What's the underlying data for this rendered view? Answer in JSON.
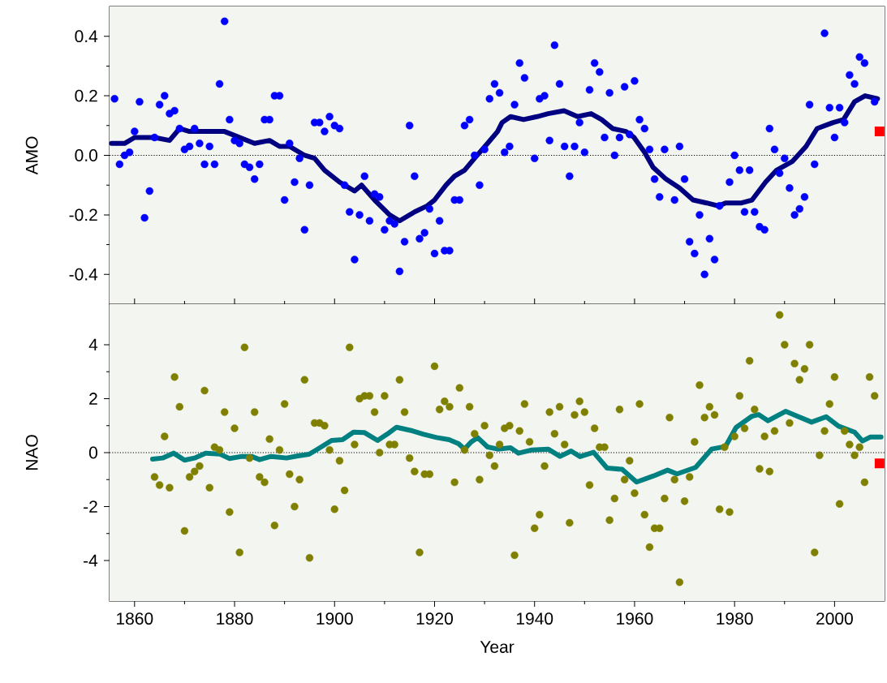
{
  "chart_data": [
    {
      "type": "scatter",
      "ylabel": "AMO",
      "xlim": [
        1855,
        2010
      ],
      "ylim": [
        -0.5,
        0.5
      ],
      "tick_labels": "y",
      "xticks": [
        1860,
        1880,
        1900,
        1920,
        1940,
        1960,
        1980,
        2000
      ],
      "yticks": [
        -0.4,
        -0.2,
        {
          "value": 0,
          "label": "0.0"
        },
        0.2,
        0.4
      ],
      "ref_lines": [
        {
          "axis": "y",
          "value": 0,
          "color": "#000000",
          "line_style": "dotted"
        }
      ],
      "series": [
        {
          "marker": "circle",
          "color": "#0000ff",
          "x": [
            1856,
            1857,
            1858,
            1859,
            1860,
            1861,
            1862,
            1863,
            1864,
            1865,
            1866,
            1867,
            1868,
            1869,
            1870,
            1871,
            1872,
            1873,
            1874,
            1875,
            1876,
            1877,
            1878,
            1879,
            1880,
            1881,
            1882,
            1883,
            1884,
            1885,
            1886,
            1887,
            1888,
            1889,
            1890,
            1891,
            1892,
            1893,
            1894,
            1895,
            1896,
            1897,
            1898,
            1899,
            1900,
            1901,
            1902,
            1903,
            1904,
            1905,
            1906,
            1907,
            1908,
            1909,
            1910,
            1911,
            1912,
            1913,
            1914,
            1915,
            1916,
            1917,
            1918,
            1919,
            1920,
            1921,
            1922,
            1923,
            1924,
            1925,
            1926,
            1927,
            1928,
            1929,
            1930,
            1931,
            1932,
            1933,
            1934,
            1935,
            1936,
            1937,
            1938,
            1939,
            1940,
            1941,
            1942,
            1943,
            1944,
            1945,
            1946,
            1947,
            1948,
            1949,
            1950,
            1951,
            1952,
            1953,
            1954,
            1955,
            1956,
            1957,
            1958,
            1959,
            1960,
            1961,
            1962,
            1963,
            1964,
            1965,
            1966,
            1967,
            1968,
            1969,
            1970,
            1971,
            1972,
            1973,
            1974,
            1975,
            1976,
            1977,
            1978,
            1979,
            1980,
            1981,
            1982,
            1983,
            1984,
            1985,
            1986,
            1987,
            1988,
            1989,
            1990,
            1991,
            1992,
            1993,
            1994,
            1995,
            1996,
            1997,
            1998,
            1999,
            2000,
            2001,
            2002,
            2003,
            2004,
            2005,
            2006,
            2007,
            2008
          ],
          "values": [
            0.19,
            -0.03,
            0.0,
            0.01,
            0.08,
            0.18,
            -0.21,
            -0.12,
            0.06,
            0.17,
            0.2,
            0.14,
            0.15,
            0.09,
            0.02,
            0.03,
            0.09,
            0.04,
            -0.03,
            0.03,
            -0.03,
            0.24,
            0.45,
            0.12,
            0.05,
            0.04,
            -0.03,
            -0.04,
            -0.08,
            -0.03,
            0.12,
            0.12,
            0.2,
            0.2,
            -0.15,
            0.04,
            -0.09,
            -0.01,
            -0.25,
            -0.1,
            0.11,
            0.11,
            0.08,
            0.13,
            0.1,
            0.09,
            -0.1,
            -0.19,
            -0.35,
            -0.2,
            -0.07,
            -0.22,
            -0.13,
            -0.14,
            -0.25,
            -0.22,
            -0.23,
            -0.39,
            -0.29,
            0.1,
            -0.07,
            -0.28,
            -0.26,
            -0.18,
            -0.33,
            -0.22,
            -0.32,
            -0.32,
            -0.15,
            -0.15,
            0.1,
            0.12,
            0.0,
            -0.1,
            0.02,
            0.19,
            0.24,
            0.21,
            0.01,
            0.03,
            0.17,
            0.31,
            0.26,
            null,
            -0.01,
            0.19,
            0.2,
            0.05,
            0.37,
            0.24,
            0.03,
            -0.07,
            0.03,
            0.11,
            0.01,
            0.22,
            0.31,
            0.28,
            0.06,
            0.21,
            0.0,
            0.06,
            0.23,
            0.07,
            0.25,
            0.12,
            0.09,
            0.02,
            -0.08,
            -0.14,
            0.02,
            null,
            -0.15,
            0.03,
            -0.08,
            -0.29,
            -0.33,
            -0.2,
            -0.4,
            -0.28,
            -0.35,
            -0.17,
            null,
            -0.09,
            0.0,
            -0.05,
            -0.19,
            -0.05,
            -0.19,
            -0.24,
            -0.25,
            0.09,
            0.02,
            -0.06,
            -0.01,
            -0.11,
            -0.2,
            -0.18,
            -0.14,
            0.17,
            -0.03,
            null,
            0.41,
            0.16,
            0.06,
            0.16,
            0.11,
            0.27,
            0.24,
            0.33,
            0.31,
            null,
            0.18
          ]
        },
        {
          "type": "line",
          "color": "#000080",
          "x": [
            1855.4,
            1858,
            1860,
            1864,
            1867,
            1869,
            1871,
            1874,
            1878,
            1881,
            1884,
            1887,
            1889,
            1891,
            1894,
            1896,
            1898,
            1901,
            1904,
            1905.4,
            1908,
            1911,
            1913,
            1916,
            1918.5,
            1920,
            1922.3,
            1924,
            1926,
            1928,
            1930.6,
            1932.6,
            1933.5,
            1935.2,
            1937.8,
            1940.5,
            1942.7,
            1945.9,
            1948.6,
            1951.3,
            1953.4,
            1955.6,
            1958.3,
            1959.9,
            1962,
            1963.7,
            1966.3,
            1969,
            1971.7,
            1974.4,
            1976.8,
            1978.2,
            1981.4,
            1983.5,
            1986.2,
            1988.4,
            1991.6,
            1994.3,
            1996.5,
            1999.7,
            2001.8,
            2004,
            2006.1,
            2008.6
          ],
          "values": [
            0.04,
            0.04,
            0.06,
            0.06,
            0.05,
            0.09,
            0.08,
            0.08,
            0.08,
            0.06,
            0.04,
            0.05,
            0.03,
            0.03,
            0.0,
            -0.01,
            -0.05,
            -0.09,
            -0.12,
            -0.1,
            -0.15,
            -0.2,
            -0.22,
            -0.19,
            -0.17,
            -0.15,
            -0.1,
            -0.07,
            -0.05,
            -0.01,
            0.04,
            0.08,
            0.11,
            0.13,
            0.12,
            0.13,
            0.14,
            0.15,
            0.13,
            0.14,
            0.12,
            0.09,
            0.08,
            0.06,
            0.01,
            -0.04,
            -0.08,
            -0.11,
            -0.15,
            -0.16,
            -0.17,
            -0.16,
            -0.16,
            -0.15,
            -0.09,
            -0.05,
            -0.02,
            0.03,
            0.09,
            0.11,
            0.12,
            0.18,
            0.2,
            0.19
          ]
        },
        {
          "marker": "square",
          "color": "#ff0000",
          "x": [
            2009
          ],
          "values": [
            0.08
          ]
        }
      ]
    },
    {
      "type": "scatter",
      "xlabel": "Year",
      "ylabel": "NAO",
      "xlim": [
        1855,
        2010
      ],
      "ylim": [
        -5.5,
        5.5
      ],
      "xticks": [
        1860,
        1880,
        1900,
        1920,
        1940,
        1960,
        1980,
        2000
      ],
      "yticks": [
        -4,
        -2,
        0,
        2,
        4
      ],
      "ref_lines": [
        {
          "axis": "y",
          "value": 0,
          "color": "#000000",
          "line_style": "dotted"
        }
      ],
      "series": [
        {
          "marker": "circle",
          "color": "#808000",
          "x": [
            1864,
            1865,
            1866,
            1867,
            1868,
            1869,
            1870,
            1871,
            1872,
            1873,
            1874,
            1875,
            1876,
            1877,
            1878,
            1879,
            1880,
            1881,
            1882,
            1883,
            1884,
            1885,
            1886,
            1887,
            1888,
            1889,
            1890,
            1891,
            1892,
            1893,
            1894,
            1895,
            1896,
            1897,
            1898,
            1899,
            1900,
            1901,
            1902,
            1903,
            1904,
            1905,
            1906,
            1907,
            1908,
            1909,
            1910,
            1911,
            1912,
            1913,
            1914,
            1915,
            1916,
            1917,
            1918,
            1919,
            1920,
            1921,
            1922,
            1923,
            1924,
            1925,
            1926,
            1927,
            1928,
            1929,
            1930,
            1931,
            1932,
            1933,
            1934,
            1935,
            1936,
            1937,
            1938,
            1939,
            1940,
            1941,
            1942,
            1943,
            1944,
            1945,
            1946,
            1947,
            1948,
            1949,
            1950,
            1951,
            1952,
            1953,
            1954,
            1955,
            1956,
            1957,
            1958,
            1959,
            1960,
            1961,
            1962,
            1963,
            1964,
            1965,
            1966,
            1967,
            1968,
            1969,
            1970,
            1971,
            1972,
            1973,
            1974,
            1975,
            1976,
            1977,
            1978,
            1979,
            1980,
            1981,
            1982,
            1983,
            1984,
            1985,
            1986,
            1987,
            1988,
            1989,
            1990,
            1991,
            1992,
            1993,
            1994,
            1995,
            1996,
            1997,
            1998,
            1999,
            2000,
            2001,
            2002,
            2003,
            2004,
            2005,
            2006,
            2007,
            2008
          ],
          "values": [
            -0.9,
            -1.2,
            0.6,
            -1.3,
            2.8,
            1.7,
            -2.9,
            -0.9,
            -0.7,
            -0.5,
            2.3,
            -1.3,
            0.2,
            0.1,
            1.5,
            -2.2,
            0.9,
            -3.7,
            3.9,
            -0.2,
            1.5,
            -0.9,
            -1.1,
            0.5,
            -2.7,
            0.1,
            1.8,
            -0.8,
            -2.0,
            -1.0,
            2.7,
            -3.9,
            1.1,
            1.1,
            1.0,
            0.1,
            -2.1,
            -0.3,
            -1.4,
            3.9,
            0.3,
            2.0,
            2.1,
            2.1,
            1.5,
            0.0,
            2.1,
            0.3,
            0.3,
            2.7,
            1.5,
            -0.2,
            -0.7,
            -3.7,
            -0.8,
            -0.8,
            3.2,
            1.6,
            1.9,
            1.7,
            -1.1,
            2.4,
            0.1,
            1.7,
            0.7,
            -1.0,
            1.0,
            -0.1,
            -0.5,
            0.3,
            0.9,
            1.0,
            -3.8,
            0.8,
            1.8,
            0.4,
            -2.8,
            -2.3,
            -0.5,
            1.5,
            0.7,
            1.7,
            0.3,
            -2.6,
            1.4,
            1.9,
            1.5,
            -1.2,
            0.9,
            0.2,
            0.2,
            -2.5,
            -1.7,
            1.6,
            -1.0,
            -0.3,
            -1.5,
            1.8,
            -2.3,
            -3.5,
            -2.8,
            -2.8,
            -1.7,
            1.3,
            -1.0,
            -4.8,
            -1.8,
            -0.9,
            0.4,
            2.5,
            1.3,
            1.7,
            1.4,
            -2.1,
            0.2,
            -2.2,
            0.6,
            2.1,
            0.9,
            3.4,
            1.6,
            -0.6,
            0.6,
            -0.7,
            0.8,
            5.1,
            4.0,
            1.1,
            3.3,
            2.7,
            3.1,
            4.0,
            -3.7,
            -0.1,
            0.8,
            1.8,
            2.8,
            -1.9,
            0.8,
            0.3,
            -0.1,
            0.2,
            -1.1,
            2.8,
            2.1
          ]
        },
        {
          "type": "line",
          "color": "#008080",
          "x": [
            1863.6,
            1865.6,
            1867.8,
            1870,
            1872,
            1874.2,
            1877,
            1879,
            1881.5,
            1883.4,
            1885,
            1887.3,
            1890.4,
            1892.7,
            1894.9,
            1896.8,
            1899.4,
            1901.6,
            1903.8,
            1906,
            1908.6,
            1910.5,
            1912.4,
            1915.3,
            1917.8,
            1920.4,
            1922.9,
            1924.8,
            1926,
            1927.3,
            1928.6,
            1930.6,
            1932.6,
            1935.2,
            1936.8,
            1939.5,
            1942.7,
            1945.1,
            1947.3,
            1949.1,
            1951.8,
            1954.5,
            1957.5,
            1960.4,
            1963.7,
            1966.6,
            1968.5,
            1972.2,
            1975.4,
            1978.2,
            1980.3,
            1983.5,
            1984.8,
            1986.7,
            1990.2,
            1995.4,
            1998.3,
            2000.8,
            2004,
            2005.6,
            2007.2,
            2009.3
          ],
          "values": [
            -0.24,
            -0.2,
            -0.02,
            -0.28,
            -0.2,
            -0.02,
            -0.05,
            -0.22,
            -0.14,
            -0.14,
            -0.26,
            -0.14,
            -0.2,
            -0.12,
            -0.06,
            0.15,
            0.45,
            0.48,
            0.76,
            0.74,
            0.45,
            0.68,
            0.94,
            0.82,
            0.68,
            0.56,
            0.48,
            0.33,
            0.13,
            0.39,
            0.56,
            0.21,
            0.13,
            0.18,
            -0.02,
            0.1,
            0.13,
            -0.14,
            0.06,
            -0.15,
            0.01,
            -0.57,
            -0.62,
            -1.09,
            -0.87,
            -0.65,
            -0.79,
            -0.55,
            0.13,
            0.23,
            0.93,
            1.35,
            1.41,
            1.18,
            1.53,
            1.13,
            1.33,
            0.98,
            0.76,
            0.43,
            0.58,
            0.58
          ]
        },
        {
          "marker": "square",
          "color": "#ff0000",
          "x": [
            2009
          ],
          "values": [
            -0.4
          ]
        }
      ]
    }
  ]
}
